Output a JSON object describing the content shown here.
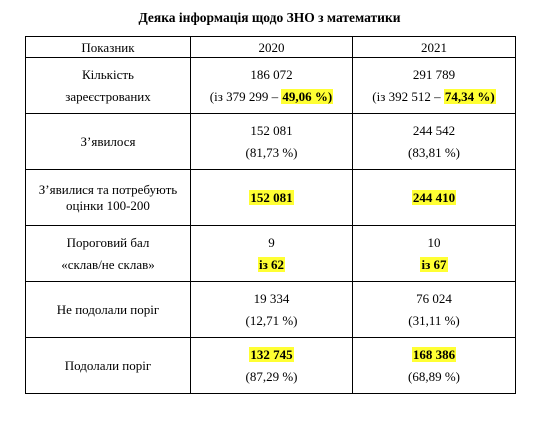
{
  "title": "Деяка інформація щодо ЗНО з математики",
  "header": {
    "indicator": "Показник",
    "year1": "2020",
    "year2": "2021"
  },
  "rows": [
    {
      "label": [
        "Кількість",
        "зареєстрованих"
      ],
      "y2020": {
        "main": "186 072",
        "sub_prefix": "(із 379 299 – ",
        "sub_hl": "49,06 %)"
      },
      "y2021": {
        "main": "291 789",
        "sub_prefix": "(із 392 512 – ",
        "sub_hl": "74,34 %)"
      }
    },
    {
      "label": [
        "З’явилося"
      ],
      "y2020": {
        "main": "152 081",
        "sub": "(81,73 %)"
      },
      "y2021": {
        "main": "244 542",
        "sub": "(83,81 %)"
      }
    },
    {
      "label": [
        "З’явилися та потребують",
        "оцінки 100-200"
      ],
      "y2020": {
        "hl": "152 081"
      },
      "y2021": {
        "hl": "244 410"
      }
    },
    {
      "label": [
        "Пороговий бал",
        "«склав/не склав»"
      ],
      "y2020": {
        "main": "9",
        "hl": "із 62"
      },
      "y2021": {
        "main": "10",
        "hl": "із 67"
      }
    },
    {
      "label": [
        "Не подолали поріг"
      ],
      "y2020": {
        "main": "19 334",
        "sub": "(12,71 %)"
      },
      "y2021": {
        "main": "76 024",
        "sub": "(31,11 %)"
      }
    },
    {
      "label": [
        "Подолали поріг"
      ],
      "y2020": {
        "hl": "132 745",
        "sub": "(87,29 %)"
      },
      "y2021": {
        "hl": "168 386",
        "sub": "(68,89 %)"
      }
    }
  ],
  "colors": {
    "highlight": "#ffff33",
    "border": "#000000"
  }
}
